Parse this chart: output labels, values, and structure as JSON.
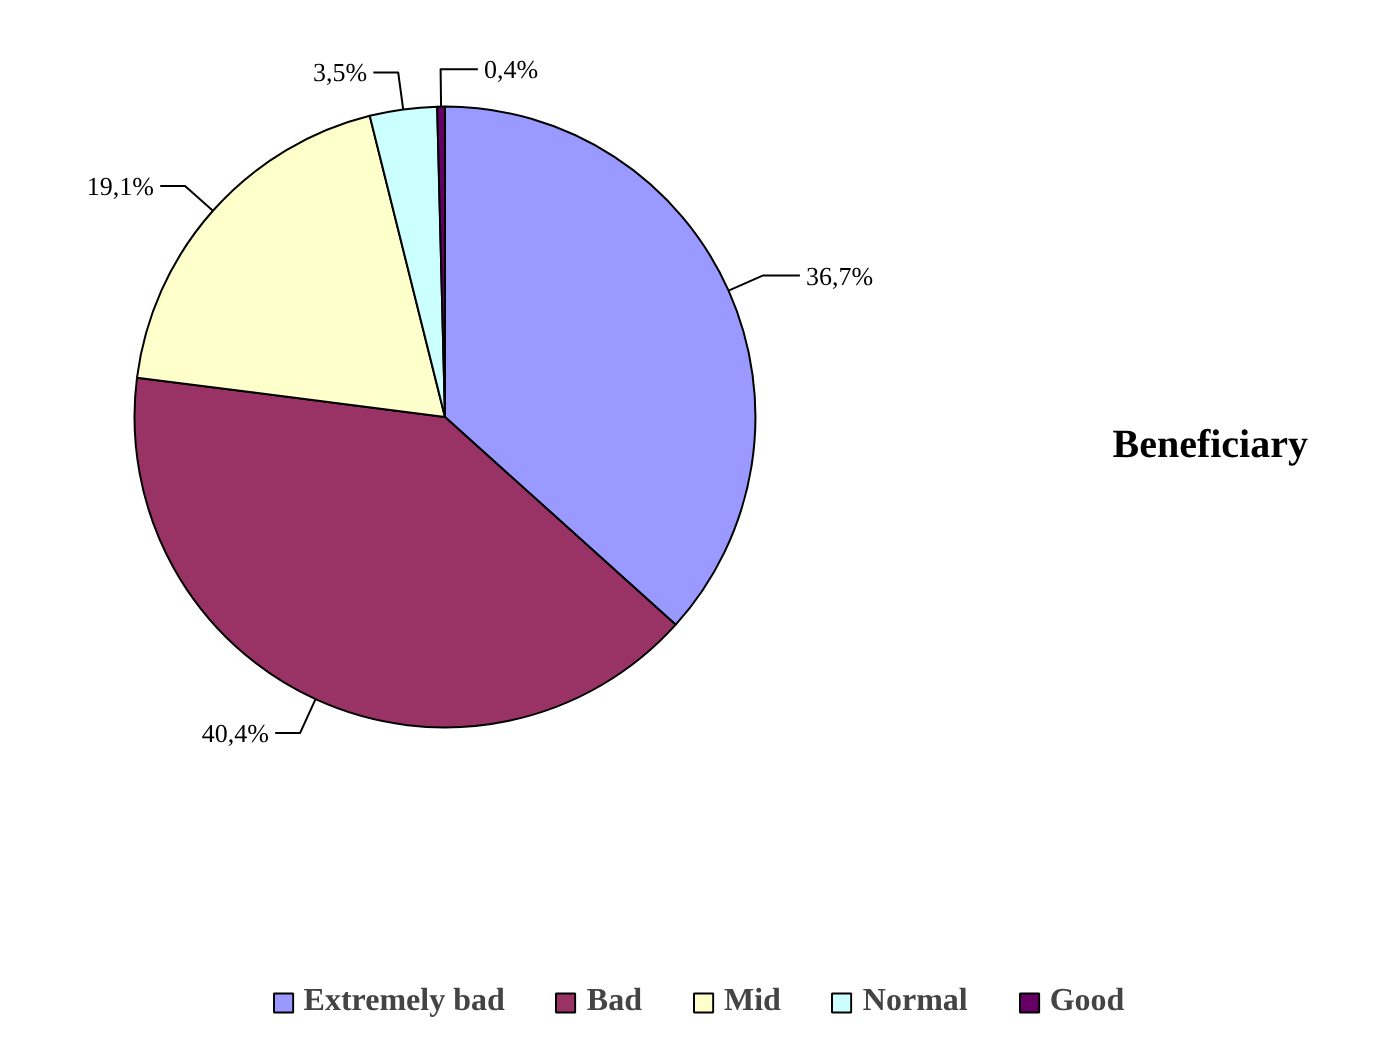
{
  "chart_data": {
    "type": "pie",
    "title": "Beneficiary",
    "categories": [
      "Extremely bad",
      "Bad",
      "Mid",
      "Normal",
      "Good"
    ],
    "values": [
      36.7,
      40.4,
      19.1,
      3.5,
      0.4
    ],
    "value_labels": [
      "36,7%",
      "40,4%",
      "19,1%",
      "3,5%",
      "0,4%"
    ],
    "colors": [
      "#9999ff",
      "#993366",
      "#ffffcc",
      "#ccffff",
      "#660066"
    ],
    "legend": "bottom"
  }
}
